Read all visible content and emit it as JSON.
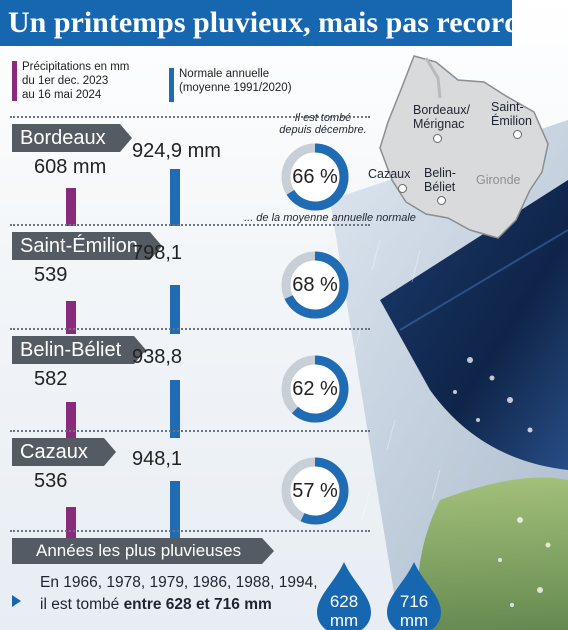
{
  "title": "Un printemps pluvieux, mais pas record",
  "legend": {
    "precip": [
      "Précipitations en mm",
      "du 1er dec. 2023",
      "au 16 mai 2024"
    ],
    "normal": [
      "Normale annuelle",
      "(moyenne 1991/2020)"
    ]
  },
  "notes": {
    "top": [
      "Il est tombé",
      "depuis décembre."
    ],
    "bottom": "... de la moyenne annuelle normale"
  },
  "map": {
    "labels": {
      "bordeaux": [
        "Bordeaux/",
        "Mérignac"
      ],
      "saint_emilion": [
        "Saint-",
        "Émilion"
      ],
      "cazaux": "Cazaux",
      "belin": [
        "Belin-",
        "Béliet"
      ],
      "gironde": "Gironde"
    }
  },
  "chart_data": {
    "type": "bar",
    "categories": [
      "Bordeaux",
      "Saint-Émilion",
      "Belin-Béliet",
      "Cazaux"
    ],
    "series": [
      {
        "name": "Précipitations en mm du 1er dec. 2023 au 16 mai 2024",
        "values": [
          608,
          539,
          582,
          536
        ],
        "labels": [
          "608 mm",
          "539",
          "582",
          "536"
        ]
      },
      {
        "name": "Normale annuelle (moyenne 1991/2020)",
        "values": [
          924.9,
          798.1,
          938.8,
          948.1
        ],
        "labels": [
          "924,9 mm",
          "798,1",
          "938,8",
          "948,1"
        ]
      }
    ],
    "percent_of_normal": [
      66,
      68,
      62,
      57
    ],
    "percent_labels": [
      "66 %",
      "68 %",
      "62 %",
      "57 %"
    ]
  },
  "rainiest_years": {
    "heading": "Années les plus pluvieuses",
    "line1": "En 1966, 1978, 1979, 1986, 1988, 1994,",
    "line2_prefix": "il est tombé ",
    "line2_bold": "entre 628 et 716 mm",
    "drops": [
      {
        "value": "628",
        "unit": "mm"
      },
      {
        "value": "716",
        "unit": "mm"
      }
    ]
  },
  "colors": {
    "precip": "#8a2a7c",
    "normal": "#1f6cb5",
    "title_bg": "#1767b0",
    "tab_bg": "#555b63",
    "donut_fill": "#1f6cb5",
    "donut_track": "#c9cfd6"
  }
}
